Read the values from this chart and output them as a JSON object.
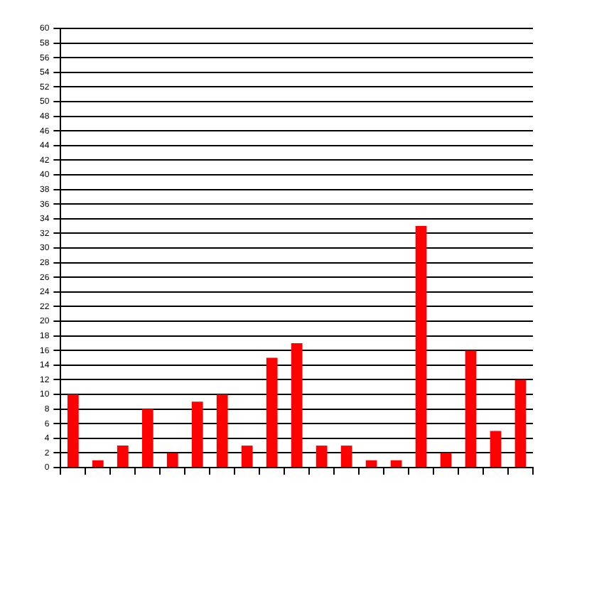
{
  "chart_data": {
    "type": "bar",
    "categories": [
      null,
      null,
      null,
      null,
      null,
      null,
      null,
      null,
      null,
      null,
      null,
      null,
      null,
      null,
      null,
      null,
      null,
      null,
      null
    ],
    "values": [
      10,
      1,
      3,
      8,
      2,
      9,
      10,
      3,
      15,
      17,
      3,
      3,
      1,
      1,
      33,
      2,
      16,
      5,
      12
    ],
    "color": "#ff0000",
    "ylim": [
      0,
      60
    ],
    "yticks": [
      0,
      2,
      4,
      6,
      8,
      10,
      12,
      14,
      16,
      18,
      20,
      22,
      24,
      26,
      28,
      30,
      32,
      34,
      36,
      38,
      40,
      42,
      44,
      46,
      48,
      50,
      52,
      54,
      56,
      58,
      60
    ],
    "grid": "y",
    "legend": false
  }
}
